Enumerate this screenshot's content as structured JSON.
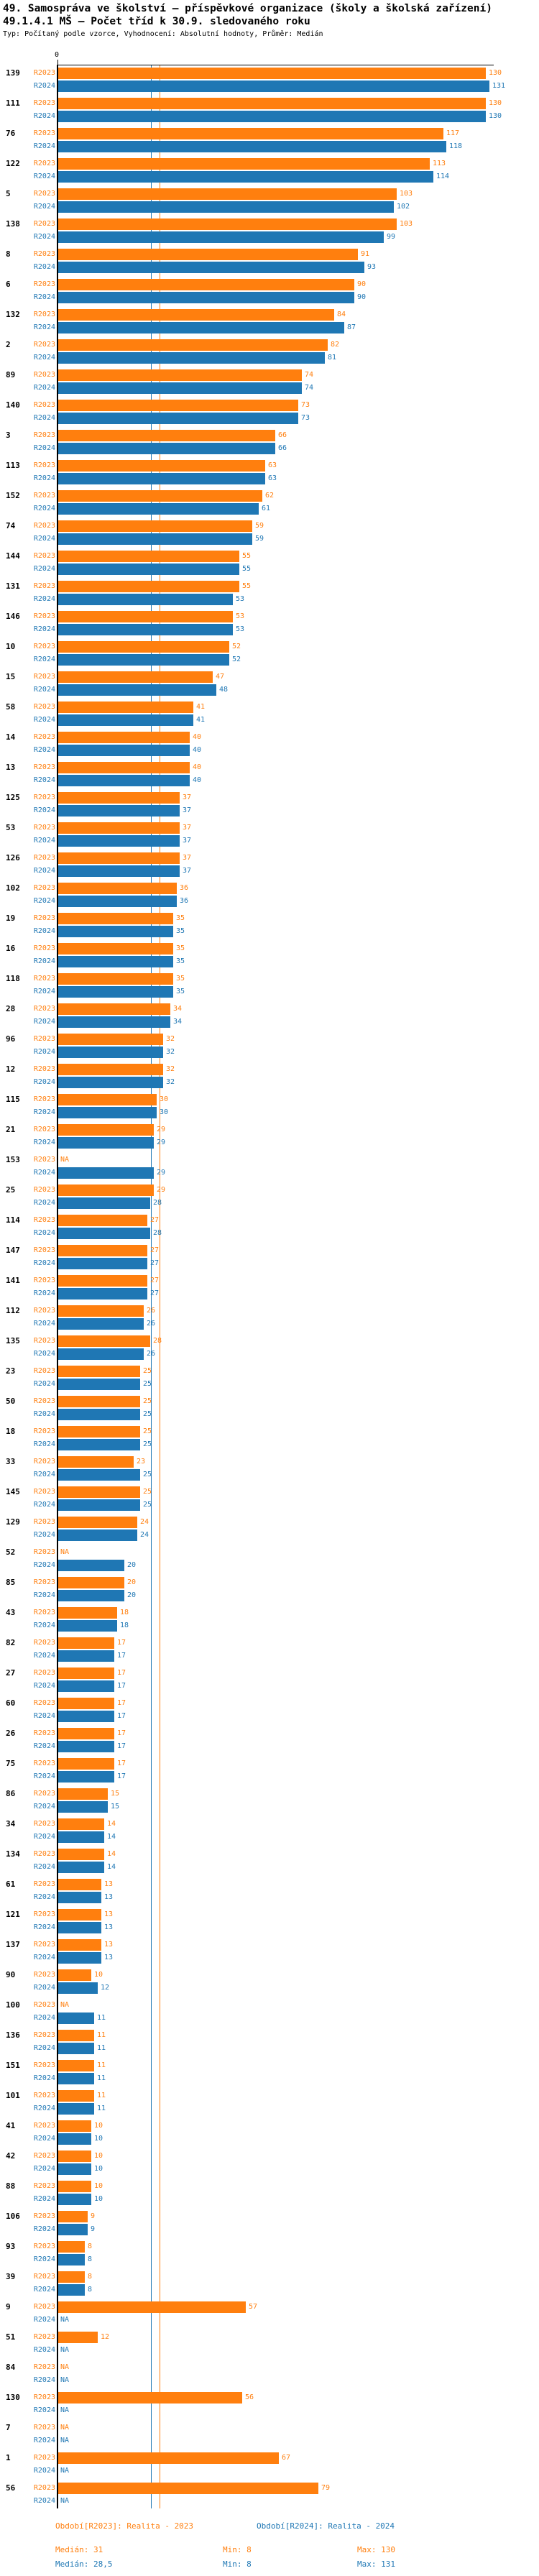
{
  "header": {
    "title": "49. Samospráva ve školství – příspěvkové organizace (školy a školská zařízení)",
    "subtitle": "49.1.4.1 MŠ – Počet tříd k 30.9. sledovaného roku",
    "meta": "Typ: Počítaný podle vzorce, Vyhodnocení: Absolutní hodnoty, Průměr: Medián"
  },
  "axis": {
    "zero": "0"
  },
  "chart_data": {
    "type": "bar",
    "orientation": "horizontal",
    "title": "49.1.4.1 MŠ – Počet tříd k 30.9. sledovaného roku",
    "xlim": [
      0,
      140
    ],
    "na_label": "NA",
    "categories": [
      "139",
      "111",
      "76",
      "122",
      "5",
      "138",
      "8",
      "6",
      "132",
      "2",
      "89",
      "140",
      "3",
      "113",
      "152",
      "74",
      "144",
      "131",
      "146",
      "10",
      "15",
      "58",
      "14",
      "13",
      "125",
      "53",
      "126",
      "102",
      "19",
      "16",
      "118",
      "28",
      "96",
      "12",
      "115",
      "21",
      "153",
      "25",
      "114",
      "147",
      "141",
      "112",
      "135",
      "23",
      "50",
      "18",
      "33",
      "145",
      "129",
      "52",
      "85",
      "43",
      "82",
      "27",
      "60",
      "26",
      "75",
      "86",
      "34",
      "134",
      "61",
      "121",
      "137",
      "90",
      "100",
      "136",
      "151",
      "101",
      "41",
      "42",
      "88",
      "106",
      "93",
      "39",
      "9",
      "51",
      "84",
      "130",
      "7",
      "1",
      "56"
    ],
    "series": [
      {
        "name": "R2023",
        "color": "#ff7f0e",
        "values": [
          130,
          130,
          117,
          113,
          103,
          103,
          91,
          90,
          84,
          82,
          74,
          73,
          66,
          63,
          62,
          59,
          55,
          55,
          53,
          52,
          47,
          41,
          40,
          40,
          37,
          37,
          37,
          36,
          35,
          35,
          35,
          34,
          32,
          32,
          30,
          29,
          null,
          29,
          27,
          27,
          27,
          26,
          28,
          25,
          25,
          25,
          23,
          25,
          24,
          null,
          20,
          18,
          17,
          17,
          17,
          17,
          17,
          15,
          14,
          14,
          13,
          13,
          13,
          10,
          null,
          11,
          11,
          11,
          10,
          10,
          10,
          9,
          8,
          8,
          57,
          12,
          null,
          56,
          null,
          67,
          79
        ]
      },
      {
        "name": "R2024",
        "color": "#1f77b4",
        "values": [
          131,
          130,
          118,
          114,
          102,
          99,
          93,
          90,
          87,
          81,
          74,
          73,
          66,
          63,
          61,
          59,
          55,
          53,
          53,
          52,
          48,
          41,
          40,
          40,
          37,
          37,
          37,
          36,
          35,
          35,
          35,
          34,
          32,
          32,
          30,
          29,
          29,
          28,
          28,
          27,
          27,
          26,
          26,
          25,
          25,
          25,
          25,
          25,
          24,
          20,
          20,
          18,
          17,
          17,
          17,
          17,
          17,
          15,
          14,
          14,
          13,
          13,
          13,
          12,
          11,
          11,
          11,
          11,
          10,
          10,
          10,
          9,
          8,
          8,
          null,
          null,
          null,
          null,
          null,
          null,
          null
        ]
      }
    ],
    "medians": {
      "R2023": 31,
      "R2024": 28.5
    }
  },
  "footer": {
    "legend_2023": "Období[R2023]: Realita - 2023",
    "legend_2024": "Období[R2024]: Realita - 2024",
    "stats_2023": {
      "median": "Medián: 31",
      "min": "Min: 8",
      "max": "Max: 130"
    },
    "stats_2024": {
      "median": "Medián: 28,5",
      "min": "Min: 8",
      "max": "Max: 131"
    }
  }
}
